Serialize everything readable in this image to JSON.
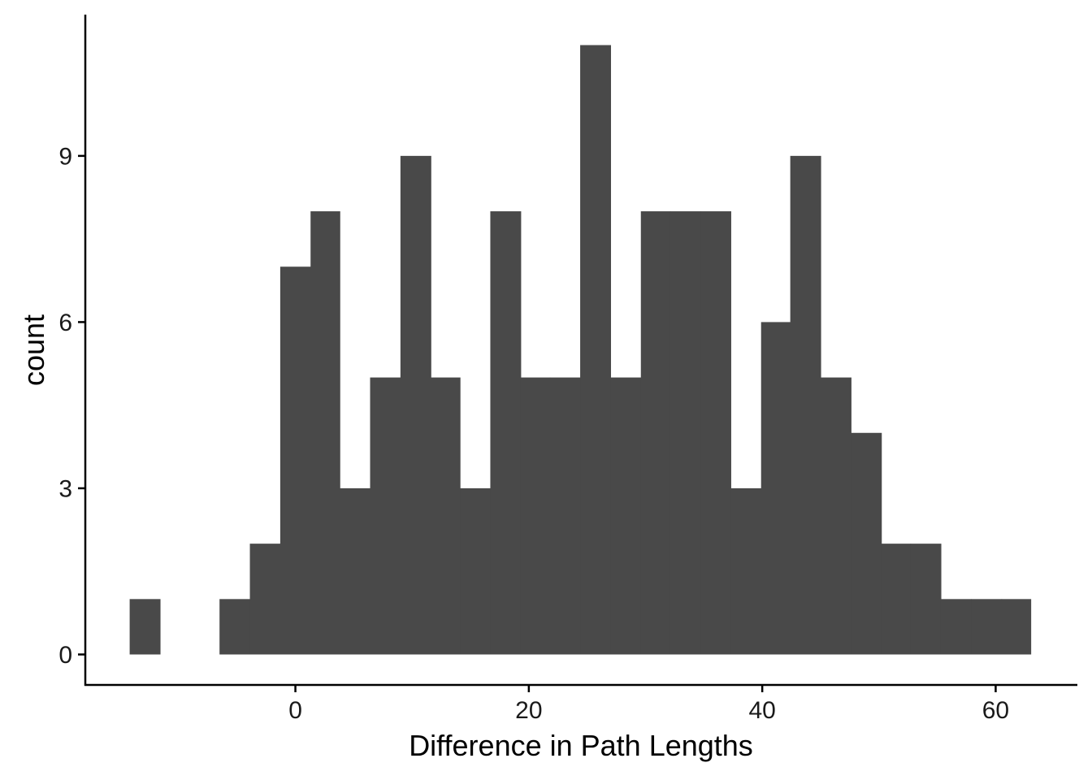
{
  "chart_data": {
    "type": "bar",
    "subtype": "histogram",
    "xlabel": "Difference in Path Lengths",
    "ylabel": "count",
    "xlim": [
      -18,
      67
    ],
    "ylim": [
      -0.55,
      11.55
    ],
    "x_ticks": [
      0,
      20,
      40,
      60
    ],
    "y_ticks": [
      0,
      3,
      6,
      9
    ],
    "bin_width": 2.57,
    "bins": [
      {
        "x0": -14.2,
        "x1": -11.6,
        "count": 1
      },
      {
        "x0": -11.6,
        "x1": -9.0,
        "count": 0
      },
      {
        "x0": -9.0,
        "x1": -6.5,
        "count": 0
      },
      {
        "x0": -6.5,
        "x1": -3.9,
        "count": 1
      },
      {
        "x0": -3.9,
        "x1": -1.3,
        "count": 2
      },
      {
        "x0": -1.3,
        "x1": 1.3,
        "count": 7
      },
      {
        "x0": 1.3,
        "x1": 3.8,
        "count": 8
      },
      {
        "x0": 3.8,
        "x1": 6.4,
        "count": 3
      },
      {
        "x0": 6.4,
        "x1": 9.0,
        "count": 5
      },
      {
        "x0": 9.0,
        "x1": 11.6,
        "count": 9
      },
      {
        "x0": 11.6,
        "x1": 14.1,
        "count": 5
      },
      {
        "x0": 14.1,
        "x1": 16.7,
        "count": 3
      },
      {
        "x0": 16.7,
        "x1": 19.3,
        "count": 8
      },
      {
        "x0": 19.3,
        "x1": 21.8,
        "count": 5
      },
      {
        "x0": 21.8,
        "x1": 24.4,
        "count": 5
      },
      {
        "x0": 24.4,
        "x1": 27.0,
        "count": 11
      },
      {
        "x0": 27.0,
        "x1": 29.6,
        "count": 5
      },
      {
        "x0": 29.6,
        "x1": 32.1,
        "count": 8
      },
      {
        "x0": 32.1,
        "x1": 34.7,
        "count": 8
      },
      {
        "x0": 34.7,
        "x1": 37.3,
        "count": 8
      },
      {
        "x0": 37.3,
        "x1": 39.9,
        "count": 3
      },
      {
        "x0": 39.9,
        "x1": 42.4,
        "count": 6
      },
      {
        "x0": 42.4,
        "x1": 45.0,
        "count": 9
      },
      {
        "x0": 45.0,
        "x1": 47.6,
        "count": 5
      },
      {
        "x0": 47.6,
        "x1": 50.2,
        "count": 4
      },
      {
        "x0": 50.2,
        "x1": 52.7,
        "count": 2
      },
      {
        "x0": 52.7,
        "x1": 55.3,
        "count": 2
      },
      {
        "x0": 55.3,
        "x1": 57.9,
        "count": 1
      },
      {
        "x0": 57.9,
        "x1": 60.5,
        "count": 1
      },
      {
        "x0": 60.5,
        "x1": 63.0,
        "count": 1
      }
    ],
    "bar_color": "#494949",
    "axis_color": "#000000",
    "grid": false,
    "legend": "none"
  }
}
